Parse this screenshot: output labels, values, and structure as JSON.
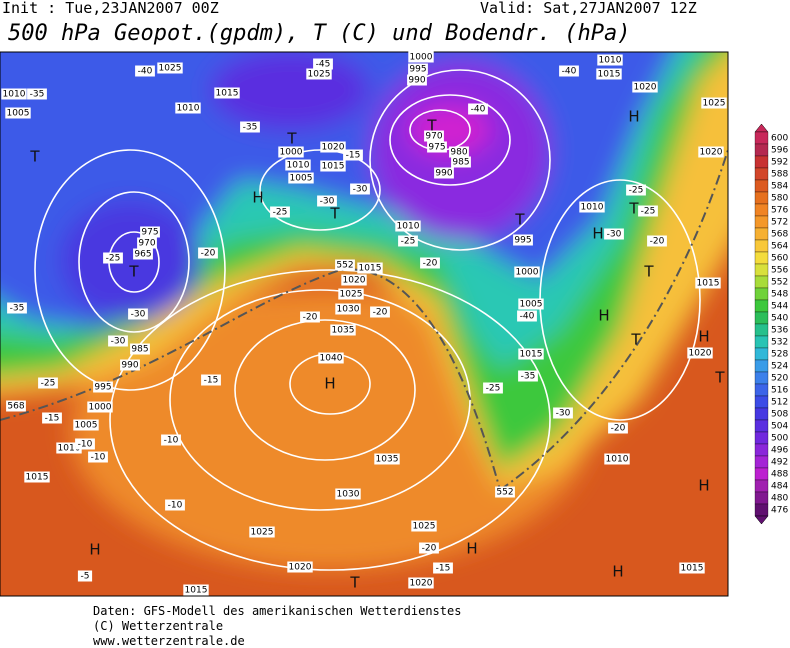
{
  "header": {
    "init": "Init : Tue,23JAN2007 00Z",
    "valid": "Valid: Sat,27JAN2007 12Z",
    "title": "500 hPa Geopot.(gpdm), T (C) und Bodendr. (hPa)"
  },
  "colorbar": {
    "labels": [
      600,
      596,
      592,
      588,
      584,
      580,
      576,
      572,
      568,
      564,
      560,
      556,
      552,
      548,
      544,
      540,
      536,
      532,
      528,
      524,
      520,
      516,
      512,
      508,
      504,
      500,
      496,
      492,
      488,
      484,
      480,
      476
    ]
  },
  "map": {
    "labels": [
      "H",
      "1040",
      "1035",
      "1030",
      "1025",
      "1020",
      "1015",
      "T",
      "965",
      "970",
      "975",
      "985",
      "990",
      "995",
      "1000",
      "1005",
      "1010",
      "1015",
      "T",
      "970",
      "975",
      "980",
      "985",
      "990",
      "995",
      "1000",
      "1005",
      "1010",
      "1015",
      "H",
      "T",
      "1000",
      "1005",
      "1010",
      "1015",
      "1020",
      "1025",
      "1025",
      "1015",
      "1010",
      "1005",
      "1010",
      "T",
      "T",
      "H",
      "T",
      "T",
      "T",
      "H",
      "T",
      "H",
      "T",
      "H",
      "1020",
      "1015",
      "1010",
      "1025",
      "1020",
      "1010",
      "1015",
      "1020",
      "1010",
      "H",
      "H",
      "H",
      "H",
      "T",
      "1035",
      "1030",
      "1025",
      "1025",
      "1020",
      "1015",
      "1015",
      "1020",
      "1000",
      "995",
      "990",
      "-45",
      "-40",
      "-40",
      "-35",
      "-40",
      "-35",
      "-30",
      "-25",
      "-30",
      "-25",
      "-20",
      "-30",
      "-25",
      "-30",
      "-35",
      "-25",
      "-15",
      "-10",
      "-10",
      "-15",
      "-20",
      "-20",
      "-15",
      "-20",
      "-25",
      "-35",
      "-30",
      "-25",
      "-25",
      "-20",
      "-20",
      "-10",
      "-10",
      "-5",
      "-20",
      "-15",
      "-40",
      "-30",
      "552",
      "552",
      "568"
    ]
  },
  "footer": {
    "lines": [
      "Daten: GFS-Modell des amerikanischen Wetterdienstes",
      "(C) Wetterzentrale",
      "www.wetterzentrale.de"
    ]
  }
}
